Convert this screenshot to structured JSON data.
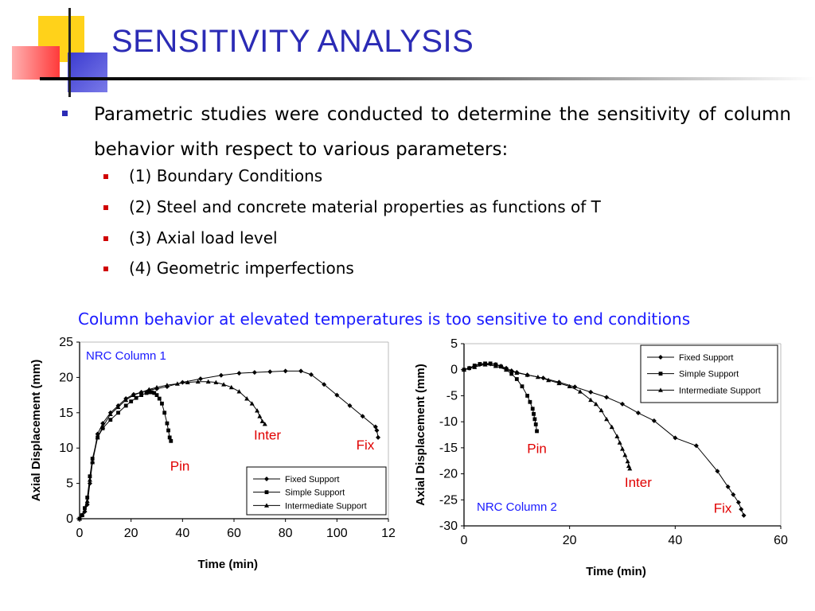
{
  "slide": {
    "title": "SENSITIVITY ANALYSIS",
    "bullet": "Parametric studies were conducted to determine the sensitivity of column behavior with respect to various parameters:",
    "subbullets": [
      "(1) Boundary Conditions",
      "(2) Steel and concrete material properties as functions of T",
      "(3) Axial load level",
      "(4) Geometric imperfections"
    ],
    "caption": "Column behavior at elevated temperatures is too sensitive to end conditions",
    "colors": {
      "title": "#2b2bb5",
      "caption": "#1a1aff",
      "annotation": "#e00000",
      "panel_label": "#1a1aff"
    }
  },
  "chart_data": [
    {
      "type": "line",
      "panel_label": "NRC Column 1",
      "xlabel": "Time (min)",
      "ylabel": "Axial Displacement (mm)",
      "xlim": [
        0,
        120
      ],
      "ylim": [
        0,
        25
      ],
      "xticks": [
        "0",
        "20",
        "40",
        "60",
        "80",
        "100",
        "12"
      ],
      "yticks": [
        "0",
        "5",
        "10",
        "15",
        "20",
        "25"
      ],
      "legend_position": "bottom-right",
      "series": [
        {
          "name": "Fixed Support",
          "marker": "diamond",
          "x": [
            0,
            1,
            2,
            3,
            4,
            5,
            7,
            9,
            12,
            15,
            18,
            21,
            24,
            27,
            30,
            34,
            40,
            47,
            55,
            62,
            68,
            74,
            80,
            86,
            90,
            95,
            100,
            105,
            110,
            115,
            115.5,
            116
          ],
          "y": [
            0,
            0.5,
            1,
            2,
            5,
            8,
            12,
            13.5,
            15,
            16,
            17,
            17.6,
            17.9,
            18.2,
            18.4,
            18.7,
            19.3,
            19.8,
            20.3,
            20.6,
            20.7,
            20.8,
            20.9,
            20.9,
            20.4,
            19,
            17.5,
            16,
            14.5,
            13,
            12.5,
            11.5
          ]
        },
        {
          "name": "Simple Support",
          "marker": "square",
          "x": [
            0,
            1,
            2,
            3,
            4,
            5,
            7,
            9,
            12,
            15,
            18,
            20,
            22,
            24,
            26,
            27,
            28,
            29,
            30,
            31,
            32,
            33,
            34,
            34.5,
            35,
            35.5
          ],
          "y": [
            0,
            0.5,
            1.5,
            3,
            6,
            8.5,
            11.5,
            12.8,
            14,
            15,
            16,
            16.6,
            17.1,
            17.5,
            17.8,
            17.9,
            17.9,
            17.8,
            17.5,
            17,
            16.3,
            15,
            13.5,
            12.5,
            11.5,
            11
          ]
        },
        {
          "name": "Intermediate Support",
          "marker": "triangle",
          "x": [
            0,
            1,
            2,
            3,
            4,
            5,
            7,
            9,
            12,
            15,
            18,
            21,
            24,
            27,
            30,
            34,
            38,
            42,
            46,
            50,
            53,
            56,
            59,
            62,
            65,
            67,
            69,
            70,
            71,
            72
          ],
          "y": [
            0,
            0.5,
            1.2,
            2.5,
            5.5,
            8,
            11.5,
            13,
            14.8,
            15.8,
            16.8,
            17.5,
            17.9,
            18.3,
            18.6,
            18.9,
            19.1,
            19.3,
            19.4,
            19.4,
            19.3,
            19,
            18.6,
            18,
            17,
            16.3,
            15.3,
            14.5,
            13.8,
            13.4
          ]
        }
      ],
      "annotations": [
        {
          "text": "Inter",
          "x": 73,
          "y": 11.2
        },
        {
          "text": "Fix",
          "x": 111,
          "y": 9.8
        },
        {
          "text": "Pin",
          "x": 39,
          "y": 6.8
        }
      ]
    },
    {
      "type": "line",
      "panel_label": "NRC Column 2",
      "xlabel": "Time (min)",
      "ylabel": "Axial Displacement (mm)",
      "xlim": [
        0,
        60
      ],
      "ylim": [
        -30,
        5
      ],
      "xticks": [
        "0",
        "20",
        "40",
        "60"
      ],
      "yticks": [
        "5",
        "0",
        "-5",
        "-10",
        "-15",
        "-20",
        "-25",
        "-30"
      ],
      "legend_position": "top-right",
      "series": [
        {
          "name": "Fixed Support",
          "marker": "diamond",
          "x": [
            0,
            1,
            2,
            3,
            4,
            5,
            6,
            7,
            8,
            9,
            10,
            12,
            15,
            18,
            21,
            24,
            27,
            30,
            33,
            36,
            40,
            44,
            48,
            50,
            51,
            52,
            52.5,
            53
          ],
          "y": [
            0,
            0.3,
            0.7,
            1.0,
            1.1,
            1.1,
            1.0,
            0.7,
            0.3,
            -0.2,
            -0.5,
            -1.0,
            -1.6,
            -2.4,
            -3.3,
            -4.3,
            -5.3,
            -6.6,
            -8.3,
            -9.8,
            -13.1,
            -14.6,
            -19.5,
            -22.5,
            -24.0,
            -25.5,
            -26.8,
            -28.0
          ]
        },
        {
          "name": "Simple Support",
          "marker": "square",
          "x": [
            0,
            1,
            2,
            3,
            4,
            5,
            6,
            7,
            8,
            9,
            10,
            11,
            12,
            12.5,
            13,
            13.2,
            13.4,
            13.6,
            13.8
          ],
          "y": [
            0,
            0.3,
            0.8,
            1.1,
            1.2,
            1.2,
            1.0,
            0.6,
            0,
            -0.8,
            -1.8,
            -3.2,
            -5.0,
            -6.2,
            -7.5,
            -8.5,
            -9.5,
            -10.5,
            -11.8
          ]
        },
        {
          "name": "Intermediate Support",
          "marker": "triangle",
          "x": [
            0,
            2,
            4,
            6,
            8,
            10,
            12,
            14,
            16,
            18,
            20,
            22,
            24,
            25,
            26,
            27,
            28,
            29,
            29.5,
            30,
            30.5,
            31,
            31.2,
            31.4
          ],
          "y": [
            0,
            0.5,
            1.0,
            0.7,
            0,
            -0.6,
            -1.0,
            -1.4,
            -2.0,
            -2.6,
            -3.2,
            -4.2,
            -5.8,
            -6.6,
            -7.8,
            -9.5,
            -11.0,
            -12.8,
            -14.0,
            -15.2,
            -16.4,
            -17.6,
            -18.5,
            -19.0
          ]
        }
      ],
      "annotations": [
        {
          "text": "Pin",
          "x": 13.8,
          "y": -16
        },
        {
          "text": "Inter",
          "x": 33,
          "y": -22.5
        },
        {
          "text": "Fix",
          "x": 49,
          "y": -27.5
        }
      ]
    }
  ]
}
